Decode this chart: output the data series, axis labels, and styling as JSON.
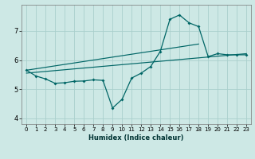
{
  "title": "",
  "xlabel": "Humidex (Indice chaleur)",
  "bg_color": "#cde8e5",
  "grid_color": "#aacfcc",
  "line_color": "#006666",
  "xlim": [
    -0.5,
    23.5
  ],
  "ylim": [
    3.8,
    7.9
  ],
  "xticks": [
    0,
    1,
    2,
    3,
    4,
    5,
    6,
    7,
    8,
    9,
    10,
    11,
    12,
    13,
    14,
    15,
    16,
    17,
    18,
    19,
    20,
    21,
    22,
    23
  ],
  "yticks": [
    4,
    5,
    6,
    7
  ],
  "line1_x": [
    0,
    1,
    2,
    3,
    4,
    5,
    6,
    7,
    8,
    9,
    10,
    11,
    12,
    13,
    14,
    15,
    16,
    17,
    18,
    19,
    20,
    21,
    22,
    23
  ],
  "line1_y": [
    5.65,
    5.45,
    5.35,
    5.2,
    5.22,
    5.27,
    5.28,
    5.32,
    5.3,
    4.35,
    4.65,
    5.38,
    5.55,
    5.78,
    6.3,
    7.4,
    7.55,
    7.28,
    7.15,
    6.12,
    6.22,
    6.18,
    6.18,
    6.18
  ],
  "line2_x": [
    0,
    18
  ],
  "line2_y": [
    5.65,
    6.55
  ],
  "line3_x": [
    0,
    23
  ],
  "line3_y": [
    5.55,
    6.22
  ]
}
